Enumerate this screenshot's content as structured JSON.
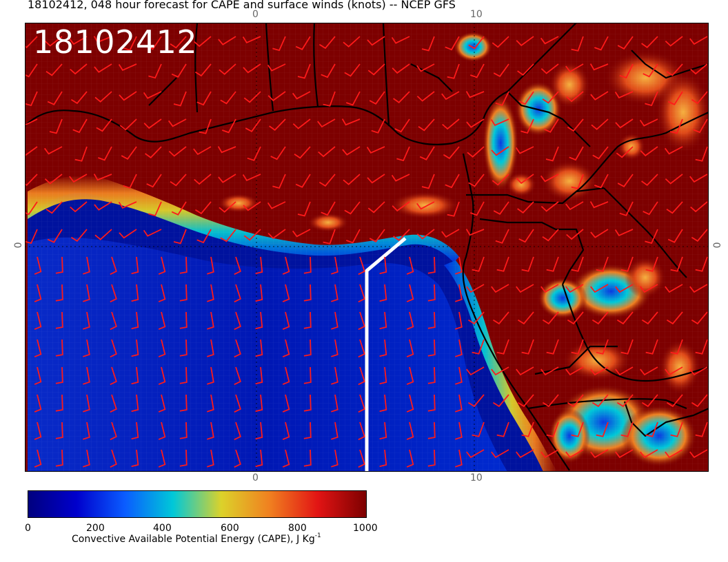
{
  "title": "18102412, 048 hour forecast for CAPE and surface winds (knots) -- NCEP GFS",
  "map": {
    "date_label": "18102412",
    "ticks": {
      "top": [
        "0",
        "10"
      ],
      "bottom": [
        "0",
        "10"
      ],
      "left": [
        "0"
      ],
      "right": [
        "0"
      ]
    },
    "colors": {
      "ocean_low": "#00008f",
      "ocean_mid": "#0a39d6",
      "cyan": "#00c8d8",
      "yellow": "#dcd22a",
      "orange": "#f08020",
      "red": "#e21414",
      "land_high": "#7d0000",
      "wind_barbs": "#ff1a1a",
      "coastline": "#000000",
      "cross_section_line": "#ffffff"
    }
  },
  "colorbar": {
    "tick_labels": [
      "0",
      "200",
      "400",
      "600",
      "800",
      "1000"
    ],
    "label": "Convective Available Potential Energy (CAPE), J Kg",
    "label_superscript": "-1",
    "stops": [
      "#00007f",
      "#0000cc",
      "#0a5cff",
      "#00c8d8",
      "#dcd22a",
      "#f08020",
      "#e21414",
      "#7d0000"
    ]
  }
}
